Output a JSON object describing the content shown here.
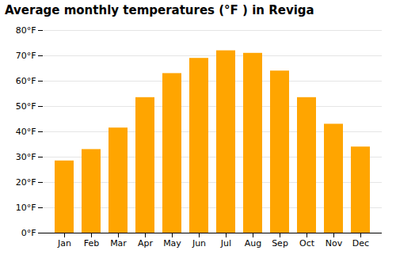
{
  "chart_data": {
    "type": "bar",
    "title": "Average monthly temperatures (°F ) in Reviga",
    "categories": [
      "Jan",
      "Feb",
      "Mar",
      "Apr",
      "May",
      "Jun",
      "Jul",
      "Aug",
      "Sep",
      "Oct",
      "Nov",
      "Dec"
    ],
    "values": [
      28.5,
      33.0,
      41.5,
      53.5,
      63.0,
      69.0,
      72.0,
      71.0,
      64.0,
      53.5,
      43.0,
      34.0
    ],
    "color": "#FFA500",
    "ylim": [
      0,
      80
    ],
    "yticks": [
      {
        "value": 0,
        "label": "0°F"
      },
      {
        "value": 10,
        "label": "10°F"
      },
      {
        "value": 20,
        "label": "20°F"
      },
      {
        "value": 30,
        "label": "30°F"
      },
      {
        "value": 40,
        "label": "40°F"
      },
      {
        "value": 50,
        "label": "50°F"
      },
      {
        "value": 60,
        "label": "60°F"
      },
      {
        "value": 70,
        "label": "70°F"
      },
      {
        "value": 80,
        "label": "80°F"
      }
    ],
    "grid": true
  }
}
